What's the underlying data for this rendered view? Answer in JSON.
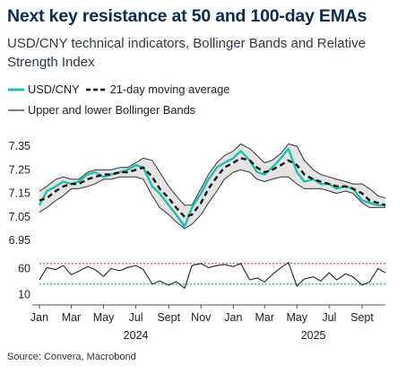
{
  "title": "Next key resistance at 50 and 100-day EMAs",
  "subtitle": "USD/CNY technical indicators, Bollinger Bands and Relative Strength Index",
  "legend": {
    "usdcny": "USD/CNY",
    "ma21": "21-day moving average",
    "bands": "Upper and lower Bollinger Bands"
  },
  "source": "Source: Convera, Macrobond",
  "colors": {
    "usdcny": "#1fbfb0",
    "ma21": "#111111",
    "bands": "#333333",
    "band_fill": "#e4e4e4",
    "rsi_line": "#111111",
    "overbought": "#e0605a",
    "oversold": "#1fbfb0"
  },
  "chart_data": [
    {
      "type": "line",
      "panel": "price",
      "ylim": [
        6.92,
        7.4
      ],
      "yticks": [
        6.95,
        7.05,
        7.15,
        7.25,
        7.35
      ],
      "ytick_labels": [
        "6.95",
        "7.05",
        "7.15",
        "7.25",
        "7.35"
      ],
      "x_range": [
        "2024-01-01",
        "2025-10-15"
      ],
      "series": [
        {
          "name": "USD/CNY",
          "x": [
            "2024-01-01",
            "2024-01-15",
            "2024-02-01",
            "2024-02-15",
            "2024-03-01",
            "2024-03-15",
            "2024-04-01",
            "2024-04-15",
            "2024-05-01",
            "2024-05-15",
            "2024-06-01",
            "2024-06-15",
            "2024-07-01",
            "2024-07-15",
            "2024-08-01",
            "2024-08-15",
            "2024-09-01",
            "2024-09-15",
            "2024-10-01",
            "2024-10-15",
            "2024-11-01",
            "2024-11-15",
            "2024-12-01",
            "2024-12-15",
            "2025-01-01",
            "2025-01-15",
            "2025-02-01",
            "2025-02-15",
            "2025-03-01",
            "2025-03-15",
            "2025-04-01",
            "2025-04-15",
            "2025-05-01",
            "2025-05-15",
            "2025-06-01",
            "2025-06-15",
            "2025-07-01",
            "2025-07-15",
            "2025-08-01",
            "2025-08-15",
            "2025-09-01",
            "2025-09-15",
            "2025-10-01",
            "2025-10-15"
          ],
          "values": [
            7.1,
            7.16,
            7.18,
            7.2,
            7.19,
            7.2,
            7.23,
            7.24,
            7.22,
            7.23,
            7.24,
            7.25,
            7.27,
            7.26,
            7.18,
            7.15,
            7.1,
            7.06,
            7.01,
            7.09,
            7.15,
            7.21,
            7.26,
            7.28,
            7.3,
            7.33,
            7.29,
            7.24,
            7.23,
            7.26,
            7.3,
            7.34,
            7.24,
            7.2,
            7.21,
            7.19,
            7.19,
            7.17,
            7.18,
            7.17,
            7.12,
            7.11,
            7.1,
            7.1
          ]
        },
        {
          "name": "21-day moving average",
          "x": [
            "2024-01-01",
            "2024-01-15",
            "2024-02-01",
            "2024-02-15",
            "2024-03-01",
            "2024-03-15",
            "2024-04-01",
            "2024-04-15",
            "2024-05-01",
            "2024-05-15",
            "2024-06-01",
            "2024-06-15",
            "2024-07-01",
            "2024-07-15",
            "2024-08-01",
            "2024-08-15",
            "2024-09-01",
            "2024-09-15",
            "2024-10-01",
            "2024-10-15",
            "2024-11-01",
            "2024-11-15",
            "2024-12-01",
            "2024-12-15",
            "2025-01-01",
            "2025-01-15",
            "2025-02-01",
            "2025-02-15",
            "2025-03-01",
            "2025-03-15",
            "2025-04-01",
            "2025-04-15",
            "2025-05-01",
            "2025-05-15",
            "2025-06-01",
            "2025-06-15",
            "2025-07-01",
            "2025-07-15",
            "2025-08-01",
            "2025-08-15",
            "2025-09-01",
            "2025-09-15",
            "2025-10-01",
            "2025-10-15"
          ],
          "values": [
            7.12,
            7.13,
            7.16,
            7.18,
            7.19,
            7.19,
            7.21,
            7.22,
            7.23,
            7.23,
            7.24,
            7.24,
            7.25,
            7.26,
            7.22,
            7.17,
            7.13,
            7.09,
            7.05,
            7.06,
            7.11,
            7.17,
            7.22,
            7.26,
            7.28,
            7.3,
            7.29,
            7.26,
            7.24,
            7.25,
            7.27,
            7.29,
            7.27,
            7.23,
            7.21,
            7.2,
            7.19,
            7.18,
            7.18,
            7.17,
            7.15,
            7.12,
            7.11,
            7.1
          ]
        },
        {
          "name": "Upper Bollinger Band",
          "x": [
            "2024-01-01",
            "2024-01-15",
            "2024-02-01",
            "2024-02-15",
            "2024-03-01",
            "2024-03-15",
            "2024-04-01",
            "2024-04-15",
            "2024-05-01",
            "2024-05-15",
            "2024-06-01",
            "2024-06-15",
            "2024-07-01",
            "2024-07-15",
            "2024-08-01",
            "2024-08-15",
            "2024-09-01",
            "2024-09-15",
            "2024-10-01",
            "2024-10-15",
            "2024-11-01",
            "2024-11-15",
            "2024-12-01",
            "2024-12-15",
            "2025-01-01",
            "2025-01-15",
            "2025-02-01",
            "2025-02-15",
            "2025-03-01",
            "2025-03-15",
            "2025-04-01",
            "2025-04-15",
            "2025-05-01",
            "2025-05-15",
            "2025-06-01",
            "2025-06-15",
            "2025-07-01",
            "2025-07-15",
            "2025-08-01",
            "2025-08-15",
            "2025-09-01",
            "2025-09-15",
            "2025-10-01",
            "2025-10-15"
          ],
          "values": [
            7.16,
            7.18,
            7.21,
            7.22,
            7.21,
            7.21,
            7.24,
            7.25,
            7.25,
            7.25,
            7.26,
            7.26,
            7.28,
            7.3,
            7.29,
            7.24,
            7.18,
            7.14,
            7.1,
            7.1,
            7.17,
            7.23,
            7.28,
            7.31,
            7.33,
            7.36,
            7.34,
            7.31,
            7.28,
            7.29,
            7.32,
            7.36,
            7.35,
            7.29,
            7.25,
            7.23,
            7.22,
            7.21,
            7.2,
            7.19,
            7.19,
            7.17,
            7.14,
            7.13
          ]
        },
        {
          "name": "Lower Bollinger Band",
          "x": [
            "2024-01-01",
            "2024-01-15",
            "2024-02-01",
            "2024-02-15",
            "2024-03-01",
            "2024-03-15",
            "2024-04-01",
            "2024-04-15",
            "2024-05-01",
            "2024-05-15",
            "2024-06-01",
            "2024-06-15",
            "2024-07-01",
            "2024-07-15",
            "2024-08-01",
            "2024-08-15",
            "2024-09-01",
            "2024-09-15",
            "2024-10-01",
            "2024-10-15",
            "2024-11-01",
            "2024-11-15",
            "2024-12-01",
            "2024-12-15",
            "2025-01-01",
            "2025-01-15",
            "2025-02-01",
            "2025-02-15",
            "2025-03-01",
            "2025-03-15",
            "2025-04-01",
            "2025-04-15",
            "2025-05-01",
            "2025-05-15",
            "2025-06-01",
            "2025-06-15",
            "2025-07-01",
            "2025-07-15",
            "2025-08-01",
            "2025-08-15",
            "2025-09-01",
            "2025-09-15",
            "2025-10-01",
            "2025-10-15"
          ],
          "values": [
            7.07,
            7.09,
            7.12,
            7.14,
            7.17,
            7.17,
            7.18,
            7.19,
            7.21,
            7.21,
            7.22,
            7.22,
            7.22,
            7.21,
            7.14,
            7.09,
            7.06,
            7.03,
            7.0,
            7.02,
            7.06,
            7.11,
            7.16,
            7.21,
            7.24,
            7.25,
            7.24,
            7.21,
            7.2,
            7.21,
            7.22,
            7.22,
            7.19,
            7.17,
            7.17,
            7.17,
            7.16,
            7.15,
            7.16,
            7.15,
            7.11,
            7.09,
            7.09,
            7.09
          ]
        }
      ]
    },
    {
      "type": "line",
      "panel": "rsi",
      "ylim": [
        0,
        80
      ],
      "yticks": [
        10,
        60
      ],
      "ytick_labels": [
        "10",
        "60"
      ],
      "reference_lines": [
        {
          "value": 70,
          "color": "#e0605a",
          "style": "dotted"
        },
        {
          "value": 30,
          "color": "#1fbfb0",
          "style": "dotted"
        }
      ],
      "series": [
        {
          "x": [
            "2024-01-01",
            "2024-01-15",
            "2024-02-01",
            "2024-02-15",
            "2024-03-01",
            "2024-03-15",
            "2024-04-01",
            "2024-04-15",
            "2024-05-01",
            "2024-05-15",
            "2024-06-01",
            "2024-06-15",
            "2024-07-01",
            "2024-07-15",
            "2024-08-01",
            "2024-08-15",
            "2024-09-01",
            "2024-09-15",
            "2024-10-01",
            "2024-10-15",
            "2024-11-01",
            "2024-11-15",
            "2024-12-01",
            "2024-12-15",
            "2025-01-01",
            "2025-01-15",
            "2025-02-01",
            "2025-02-15",
            "2025-03-01",
            "2025-03-15",
            "2025-04-01",
            "2025-04-15",
            "2025-05-01",
            "2025-05-15",
            "2025-06-01",
            "2025-06-15",
            "2025-07-01",
            "2025-07-15",
            "2025-08-01",
            "2025-08-15",
            "2025-09-01",
            "2025-09-15",
            "2025-10-01",
            "2025-10-15"
          ],
          "values": [
            38,
            62,
            58,
            66,
            48,
            55,
            64,
            58,
            45,
            60,
            56,
            62,
            66,
            58,
            30,
            36,
            28,
            35,
            22,
            66,
            70,
            62,
            66,
            68,
            64,
            70,
            38,
            42,
            34,
            48,
            62,
            72,
            26,
            40,
            44,
            36,
            52,
            38,
            50,
            44,
            28,
            34,
            60,
            52
          ]
        }
      ],
      "x_ticks": [
        "Jan",
        "Mar",
        "May",
        "Jul",
        "Sept",
        "Nov",
        "Jan",
        "Mar",
        "May",
        "Jul",
        "Sept"
      ],
      "x_tick_dates": [
        "2024-01-01",
        "2024-03-01",
        "2024-05-01",
        "2024-07-01",
        "2024-09-01",
        "2024-11-01",
        "2025-01-01",
        "2025-03-01",
        "2025-05-01",
        "2025-07-01",
        "2025-09-01"
      ],
      "year_labels": [
        {
          "label": "2024",
          "center": "2024-07-01"
        },
        {
          "label": "2025",
          "center": "2025-06-01"
        }
      ]
    }
  ]
}
